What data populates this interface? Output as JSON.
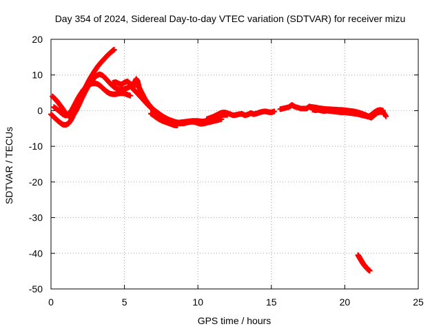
{
  "chart_data": {
    "type": "scatter",
    "title": "Day 354 of 2024, Sidereal Day-to-day VTEC variation (SDTVAR) for receiver mizu",
    "xlabel": "GPS time / hours",
    "ylabel": "SDTVAR / TECUs",
    "xlim": [
      0,
      25
    ],
    "ylim": [
      -50,
      20
    ],
    "xticks": [
      0,
      5,
      10,
      15,
      20,
      25
    ],
    "yticks": [
      -50,
      -40,
      -30,
      -20,
      -10,
      0,
      10,
      20
    ],
    "xtick_labels": [
      "0",
      "5",
      "10",
      "15",
      "20",
      "25"
    ],
    "ytick_labels": [
      "-50",
      "-40",
      "-30",
      "-20",
      "-10",
      "0",
      "10",
      "20"
    ],
    "grid": true,
    "marker": "plus",
    "color": "#ff0000",
    "series": [
      {
        "name": "arc-1",
        "points": [
          [
            0.0,
            -1.0
          ],
          [
            0.2,
            -1.8
          ],
          [
            0.4,
            -2.6
          ],
          [
            0.6,
            -3.3
          ],
          [
            0.8,
            -3.9
          ],
          [
            1.0,
            -4.0
          ],
          [
            1.2,
            -3.6
          ],
          [
            1.4,
            -2.4
          ],
          [
            1.6,
            -0.6
          ],
          [
            1.8,
            1.5
          ],
          [
            2.0,
            3.6
          ],
          [
            2.2,
            5.4
          ],
          [
            2.4,
            7.0
          ],
          [
            2.6,
            8.6
          ],
          [
            2.8,
            10.0
          ],
          [
            3.0,
            11.3
          ],
          [
            3.2,
            12.5
          ],
          [
            3.4,
            13.5
          ],
          [
            3.6,
            14.4
          ],
          [
            3.8,
            15.3
          ],
          [
            4.0,
            16.1
          ],
          [
            4.2,
            16.8
          ],
          [
            4.3,
            17.1
          ]
        ]
      },
      {
        "name": "arc-2",
        "points": [
          [
            0.1,
            4.0
          ],
          [
            0.3,
            3.2
          ],
          [
            0.5,
            2.2
          ],
          [
            0.7,
            1.1
          ],
          [
            0.9,
            -0.1
          ],
          [
            1.1,
            -1.2
          ],
          [
            1.3,
            -1.8
          ],
          [
            1.5,
            -1.3
          ],
          [
            1.7,
            -0.1
          ],
          [
            1.9,
            1.6
          ],
          [
            2.1,
            3.4
          ],
          [
            2.3,
            5.1
          ],
          [
            2.5,
            6.6
          ],
          [
            2.7,
            7.9
          ],
          [
            2.9,
            9.0
          ],
          [
            3.1,
            9.8
          ],
          [
            3.3,
            10.2
          ],
          [
            3.5,
            9.9
          ],
          [
            3.7,
            9.1
          ],
          [
            3.9,
            8.2
          ],
          [
            4.1,
            7.3
          ],
          [
            4.3,
            6.6
          ],
          [
            4.5,
            6.1
          ],
          [
            4.7,
            5.8
          ],
          [
            4.9,
            5.9
          ],
          [
            5.1,
            6.2
          ],
          [
            5.3,
            6.6
          ],
          [
            5.5,
            6.9
          ],
          [
            5.7,
            6.6
          ]
        ]
      },
      {
        "name": "arc-3",
        "points": [
          [
            0.2,
            1.0
          ],
          [
            0.4,
            0.4
          ],
          [
            0.6,
            -0.3
          ],
          [
            0.8,
            -1.0
          ],
          [
            1.0,
            -1.4
          ],
          [
            1.2,
            -1.0
          ],
          [
            1.4,
            0.1
          ],
          [
            1.6,
            1.6
          ],
          [
            1.8,
            3.2
          ],
          [
            2.0,
            4.6
          ],
          [
            2.2,
            5.8
          ],
          [
            2.4,
            6.7
          ],
          [
            2.6,
            7.3
          ],
          [
            2.8,
            7.6
          ],
          [
            3.0,
            7.7
          ],
          [
            3.2,
            7.4
          ],
          [
            3.4,
            6.8
          ],
          [
            3.6,
            6.0
          ],
          [
            3.8,
            5.3
          ],
          [
            4.0,
            4.8
          ],
          [
            4.2,
            4.6
          ],
          [
            4.4,
            4.6
          ],
          [
            4.6,
            4.8
          ],
          [
            4.8,
            4.9
          ],
          [
            5.0,
            4.8
          ],
          [
            5.2,
            4.5
          ],
          [
            5.4,
            4.2
          ]
        ]
      },
      {
        "name": "arc-4",
        "points": [
          [
            4.2,
            7.8
          ],
          [
            4.4,
            8.0
          ],
          [
            4.6,
            7.6
          ],
          [
            4.8,
            7.3
          ],
          [
            5.0,
            7.9
          ],
          [
            5.2,
            8.2
          ],
          [
            5.4,
            7.5
          ],
          [
            5.6,
            7.2
          ],
          [
            5.8,
            8.9
          ],
          [
            5.9,
            8.2
          ],
          [
            6.0,
            6.5
          ],
          [
            6.1,
            5.6
          ],
          [
            6.2,
            4.8
          ],
          [
            6.3,
            4.0
          ],
          [
            6.4,
            3.2
          ],
          [
            6.5,
            2.6
          ],
          [
            6.6,
            2.0
          ],
          [
            6.7,
            1.5
          ],
          [
            6.8,
            1.0
          ],
          [
            6.9,
            0.6
          ],
          [
            7.0,
            0.2
          ],
          [
            7.2,
            -0.4
          ],
          [
            7.4,
            -1.0
          ],
          [
            7.6,
            -1.6
          ],
          [
            7.8,
            -2.1
          ],
          [
            8.0,
            -2.5
          ],
          [
            8.2,
            -2.9
          ],
          [
            8.4,
            -3.2
          ],
          [
            8.6,
            -3.3
          ],
          [
            8.8,
            -3.3
          ],
          [
            9.0,
            -3.2
          ],
          [
            9.2,
            -3.1
          ],
          [
            9.4,
            -3.0
          ],
          [
            9.6,
            -2.9
          ],
          [
            9.8,
            -2.9
          ],
          [
            10.0,
            -2.9
          ],
          [
            10.2,
            -3.0
          ],
          [
            10.4,
            -3.0
          ],
          [
            10.6,
            -2.9
          ],
          [
            10.8,
            -2.7
          ],
          [
            11.0,
            -2.4
          ],
          [
            11.2,
            -2.0
          ],
          [
            11.4,
            -1.6
          ],
          [
            11.6,
            -1.3
          ],
          [
            11.8,
            -1.2
          ],
          [
            12.0,
            -1.2
          ]
        ]
      },
      {
        "name": "arc-5",
        "points": [
          [
            5.6,
            6.0
          ],
          [
            5.8,
            5.2
          ],
          [
            6.0,
            4.3
          ],
          [
            6.2,
            3.4
          ],
          [
            6.4,
            2.5
          ],
          [
            6.6,
            1.6
          ],
          [
            6.8,
            0.8
          ],
          [
            7.0,
            0.0
          ],
          [
            7.2,
            -0.6
          ],
          [
            7.4,
            -1.2
          ],
          [
            7.6,
            -1.7
          ],
          [
            7.8,
            -2.1
          ],
          [
            8.0,
            -2.5
          ],
          [
            8.2,
            -2.8
          ],
          [
            8.4,
            -3.1
          ],
          [
            8.6,
            -3.4
          ],
          [
            8.8,
            -3.6
          ],
          [
            9.0,
            -3.6
          ],
          [
            9.2,
            -3.4
          ],
          [
            9.4,
            -3.2
          ],
          [
            9.6,
            -3.1
          ],
          [
            9.8,
            -3.2
          ],
          [
            10.0,
            -3.5
          ],
          [
            10.2,
            -3.7
          ],
          [
            10.4,
            -3.6
          ],
          [
            10.6,
            -3.4
          ],
          [
            10.8,
            -3.2
          ],
          [
            11.0,
            -3.0
          ],
          [
            11.2,
            -2.8
          ],
          [
            11.4,
            -2.6
          ],
          [
            11.6,
            -2.4
          ]
        ]
      },
      {
        "name": "arc-6",
        "points": [
          [
            6.8,
            -0.8
          ],
          [
            7.0,
            -1.4
          ],
          [
            7.2,
            -2.0
          ],
          [
            7.4,
            -2.5
          ],
          [
            7.6,
            -2.9
          ],
          [
            7.8,
            -3.2
          ],
          [
            8.0,
            -3.5
          ],
          [
            8.2,
            -3.8
          ],
          [
            8.4,
            -4.1
          ],
          [
            8.6,
            -4.2
          ]
        ]
      },
      {
        "name": "arc-7",
        "points": [
          [
            10.6,
            -2.4
          ],
          [
            10.8,
            -2.1
          ],
          [
            11.0,
            -1.8
          ],
          [
            11.2,
            -1.4
          ],
          [
            11.4,
            -1.0
          ],
          [
            11.6,
            -0.6
          ],
          [
            11.8,
            -0.5
          ],
          [
            12.0,
            -0.7
          ],
          [
            12.2,
            -1.0
          ],
          [
            12.4,
            -1.3
          ],
          [
            12.6,
            -1.2
          ],
          [
            12.8,
            -1.0
          ],
          [
            13.0,
            -0.9
          ],
          [
            13.2,
            -1.3
          ],
          [
            13.4,
            -1.1
          ],
          [
            13.6,
            -0.7
          ],
          [
            13.8,
            -1.0
          ],
          [
            14.0,
            -0.8
          ],
          [
            14.2,
            -0.5
          ],
          [
            14.4,
            -0.3
          ],
          [
            14.6,
            -0.2
          ],
          [
            14.8,
            -0.4
          ],
          [
            15.0,
            -0.5
          ],
          [
            15.2,
            -0.2
          ]
        ]
      },
      {
        "name": "arc-8",
        "points": [
          [
            15.6,
            0.4
          ],
          [
            15.8,
            0.6
          ],
          [
            16.2,
            1.0
          ],
          [
            16.4,
            1.6
          ],
          [
            16.6,
            1.1
          ],
          [
            17.0,
            0.6
          ],
          [
            17.4,
            0.6
          ],
          [
            17.6,
            1.2
          ]
        ]
      },
      {
        "name": "arc-9",
        "points": [
          [
            17.6,
            1.1
          ],
          [
            17.8,
            1.0
          ],
          [
            18.0,
            0.9
          ],
          [
            18.2,
            0.7
          ],
          [
            18.4,
            0.6
          ],
          [
            18.6,
            0.5
          ],
          [
            18.8,
            0.4
          ],
          [
            19.0,
            0.4
          ],
          [
            19.2,
            0.3
          ],
          [
            19.4,
            0.3
          ],
          [
            19.6,
            0.2
          ],
          [
            19.8,
            0.2
          ],
          [
            20.0,
            0.1
          ],
          [
            20.2,
            0.0
          ],
          [
            20.4,
            -0.1
          ],
          [
            20.6,
            -0.2
          ],
          [
            20.8,
            -0.4
          ],
          [
            21.0,
            -0.6
          ],
          [
            21.2,
            -0.9
          ],
          [
            21.4,
            -1.2
          ],
          [
            21.6,
            -1.6
          ],
          [
            21.8,
            -2.0
          ],
          [
            22.0,
            -1.3
          ],
          [
            22.2,
            -0.6
          ],
          [
            22.4,
            -0.4
          ],
          [
            22.6,
            -0.3
          ],
          [
            22.8,
            -1.6
          ]
        ]
      },
      {
        "name": "arc-10",
        "points": [
          [
            17.8,
            0.3
          ],
          [
            18.0,
            0.1
          ],
          [
            18.2,
            0.2
          ],
          [
            18.4,
            0.0
          ],
          [
            18.6,
            -0.1
          ],
          [
            18.8,
            0.0
          ],
          [
            19.0,
            -0.1
          ],
          [
            19.2,
            -0.2
          ],
          [
            19.4,
            -0.3
          ],
          [
            19.6,
            -0.4
          ],
          [
            19.8,
            -0.5
          ],
          [
            20.0,
            -0.5
          ],
          [
            20.2,
            -0.6
          ],
          [
            20.4,
            -0.7
          ],
          [
            20.6,
            -0.8
          ],
          [
            20.8,
            -0.9
          ],
          [
            21.0,
            -1.1
          ],
          [
            21.2,
            -1.3
          ],
          [
            21.4,
            -1.5
          ],
          [
            21.6,
            -1.7
          ],
          [
            21.8,
            -1.2
          ],
          [
            22.0,
            -0.5
          ],
          [
            22.2,
            0.0
          ],
          [
            22.4,
            0.2
          ],
          [
            22.6,
            0.0
          ]
        ]
      },
      {
        "name": "arc-11",
        "points": [
          [
            20.9,
            -40.5
          ],
          [
            21.0,
            -41.2
          ],
          [
            21.1,
            -41.9
          ],
          [
            21.2,
            -42.6
          ],
          [
            21.3,
            -43.2
          ],
          [
            21.4,
            -43.7
          ],
          [
            21.5,
            -44.2
          ],
          [
            21.6,
            -44.6
          ],
          [
            21.7,
            -44.9
          ]
        ]
      }
    ]
  }
}
